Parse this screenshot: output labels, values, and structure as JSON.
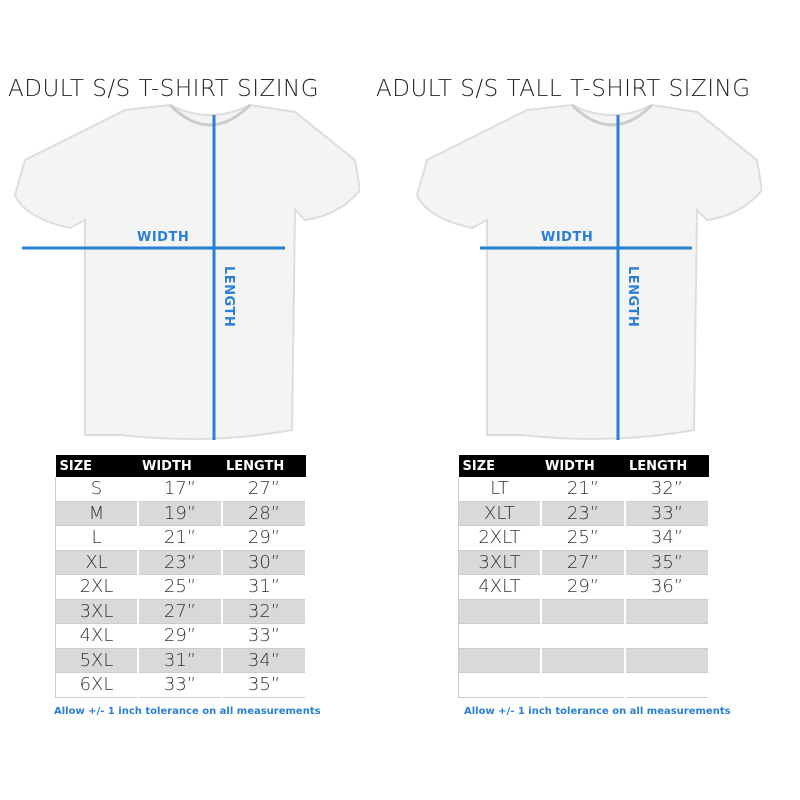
{
  "accent_color": "#2a7fd4",
  "left": {
    "title": "ADULT S/S T-SHIRT SIZING",
    "width_label": "WIDTH",
    "length_label": "LENGTH",
    "headers": [
      "SIZE",
      "WIDTH",
      "LENGTH"
    ],
    "rows": [
      [
        "S",
        "17”",
        "27”"
      ],
      [
        "M",
        "19”",
        "28”"
      ],
      [
        "L",
        "21”",
        "29”"
      ],
      [
        "XL",
        "23”",
        "30”"
      ],
      [
        "2XL",
        "25”",
        "31”"
      ],
      [
        "3XL",
        "27”",
        "32”"
      ],
      [
        "4XL",
        "29”",
        "33”"
      ],
      [
        "5XL",
        "31”",
        "34”"
      ],
      [
        "6XL",
        "33”",
        "35”"
      ]
    ],
    "note": "Allow +/- 1 inch tolerance on all measurements"
  },
  "right": {
    "title": "ADULT S/S TALL T-SHIRT SIZING",
    "width_label": "WIDTH",
    "length_label": "LENGTH",
    "headers": [
      "SIZE",
      "WIDTH",
      "LENGTH"
    ],
    "rows": [
      [
        "LT",
        "21”",
        "32”"
      ],
      [
        "XLT",
        "23”",
        "33”"
      ],
      [
        "2XLT",
        "25”",
        "34”"
      ],
      [
        "3XLT",
        "27”",
        "35”"
      ],
      [
        "4XLT",
        "29”",
        "36”"
      ],
      [
        "",
        "",
        ""
      ],
      [
        "",
        "",
        ""
      ],
      [
        "",
        "",
        ""
      ],
      [
        "",
        "",
        ""
      ]
    ],
    "note": "Allow +/- 1 inch tolerance on all measurements"
  }
}
